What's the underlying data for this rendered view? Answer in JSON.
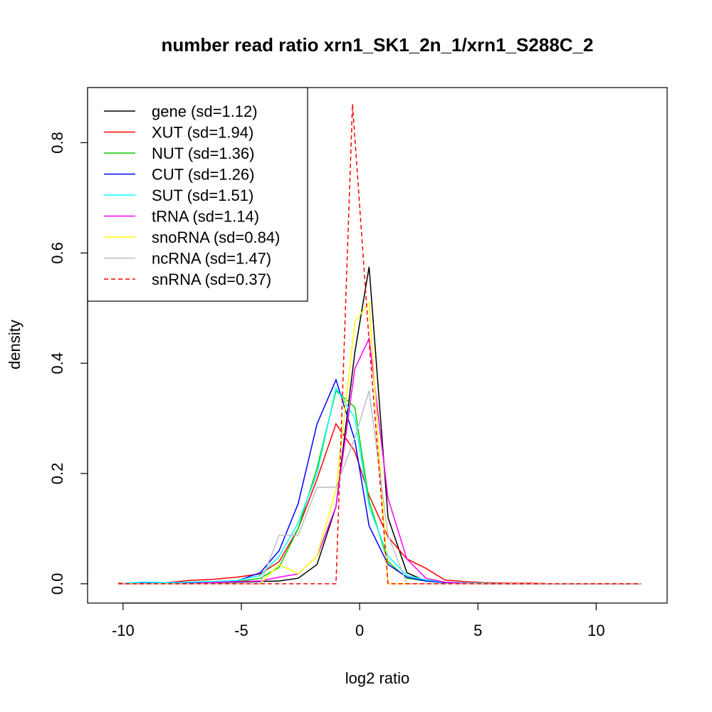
{
  "chart_data": {
    "type": "line",
    "title": "number read ratio xrn1_SK1_2n_1/xrn1_S288C_2",
    "xlabel": "log2 ratio",
    "ylabel": "density",
    "xlim": [
      -11.5,
      13.0
    ],
    "ylim": [
      -0.035,
      0.9
    ],
    "xticks": [
      -10,
      -5,
      0,
      5,
      10
    ],
    "xtick_labels": [
      "-10",
      "-5",
      "0",
      "5",
      "10"
    ],
    "yticks": [
      0.0,
      0.2,
      0.4,
      0.6,
      0.8
    ],
    "ytick_labels": [
      "0.0",
      "0.2",
      "0.4",
      "0.6",
      "0.8"
    ],
    "grid": false,
    "legend_position": "top-left",
    "series": [
      {
        "name": "gene (sd=1.12)",
        "color": "#000000",
        "dash": false,
        "x": [
          -10.2,
          -9.2,
          -8.2,
          -7.2,
          -6.2,
          -5.2,
          -4.2,
          -3.4,
          -2.6,
          -1.8,
          -1.0,
          -0.2,
          0.4,
          1.2,
          2.0,
          2.8,
          3.6,
          4.4,
          5.2,
          6.2,
          7.2,
          8.2,
          9.2,
          10.2,
          11.9
        ],
        "y": [
          0.0,
          0.0,
          0.001,
          0.002,
          0.002,
          0.003,
          0.004,
          0.005,
          0.01,
          0.035,
          0.14,
          0.42,
          0.575,
          0.12,
          0.02,
          0.005,
          0.002,
          0.001,
          0.001,
          0.0,
          0.0,
          0.0,
          0.0,
          0.0,
          0.0
        ]
      },
      {
        "name": "XUT (sd=1.94)",
        "color": "#ff0000",
        "dash": false,
        "x": [
          -10.2,
          -9.2,
          -8.2,
          -7.2,
          -6.2,
          -5.2,
          -4.2,
          -3.4,
          -2.6,
          -1.8,
          -1.0,
          -0.2,
          0.4,
          1.2,
          2.0,
          2.8,
          3.6,
          4.4,
          5.2,
          6.2,
          7.2,
          8.2,
          9.2,
          10.2,
          11.9
        ],
        "y": [
          0.001,
          0.001,
          0.002,
          0.006,
          0.008,
          0.012,
          0.018,
          0.04,
          0.1,
          0.19,
          0.29,
          0.24,
          0.16,
          0.085,
          0.045,
          0.028,
          0.007,
          0.004,
          0.002,
          0.001,
          0.001,
          0.0,
          0.0,
          0.0,
          0.0
        ]
      },
      {
        "name": "NUT (sd=1.36)",
        "color": "#00cd00",
        "dash": false,
        "x": [
          -10.2,
          -9.2,
          -8.2,
          -7.2,
          -6.2,
          -5.2,
          -4.2,
          -3.4,
          -2.6,
          -1.8,
          -1.0,
          -0.2,
          0.4,
          1.2,
          2.0,
          2.8,
          3.6,
          4.4,
          5.2,
          6.2,
          7.2,
          8.2,
          9.2,
          10.2,
          11.9
        ],
        "y": [
          0.0,
          0.002,
          0.001,
          0.002,
          0.003,
          0.004,
          0.01,
          0.03,
          0.1,
          0.21,
          0.35,
          0.32,
          0.15,
          0.04,
          0.01,
          0.005,
          0.002,
          0.001,
          0.0,
          0.0,
          0.0,
          0.0,
          0.0,
          0.0,
          0.0
        ]
      },
      {
        "name": "CUT (sd=1.26)",
        "color": "#0000ff",
        "dash": false,
        "x": [
          -10.2,
          -9.2,
          -8.2,
          -7.2,
          -6.2,
          -5.2,
          -4.2,
          -3.4,
          -2.6,
          -1.8,
          -1.0,
          -0.2,
          0.4,
          1.2,
          2.0,
          2.8,
          3.6,
          4.4,
          5.2,
          6.2,
          7.2,
          8.2,
          9.2,
          10.2,
          11.9
        ],
        "y": [
          0.0,
          0.001,
          0.001,
          0.002,
          0.003,
          0.005,
          0.02,
          0.06,
          0.145,
          0.29,
          0.37,
          0.26,
          0.105,
          0.035,
          0.012,
          0.005,
          0.002,
          0.001,
          0.0,
          0.0,
          0.0,
          0.0,
          0.0,
          0.0,
          0.0
        ]
      },
      {
        "name": "SUT (sd=1.51)",
        "color": "#00ffff",
        "dash": false,
        "x": [
          -10.2,
          -9.2,
          -8.2,
          -7.2,
          -6.2,
          -5.2,
          -4.2,
          -3.4,
          -2.6,
          -1.8,
          -1.0,
          -0.2,
          0.4,
          1.2,
          2.0,
          2.8,
          3.6,
          4.4,
          5.2,
          6.2,
          7.2,
          8.2,
          9.2,
          10.2,
          11.9
        ],
        "y": [
          0.0,
          0.003,
          0.002,
          0.003,
          0.004,
          0.006,
          0.015,
          0.05,
          0.11,
          0.2,
          0.355,
          0.3,
          0.14,
          0.05,
          0.015,
          0.007,
          0.003,
          0.002,
          0.001,
          0.0,
          0.0,
          0.0,
          0.0,
          0.0,
          0.0
        ]
      },
      {
        "name": "tRNA (sd=1.14)",
        "color": "#ff00ff",
        "dash": false,
        "x": [
          -10.2,
          -9.2,
          -8.2,
          -7.2,
          -6.2,
          -5.2,
          -4.2,
          -3.4,
          -2.6,
          -1.8,
          -1.0,
          -0.2,
          0.4,
          1.2,
          2.0,
          2.8,
          3.6,
          4.4,
          5.2,
          6.2,
          7.2,
          8.2,
          9.2,
          10.2,
          11.9
        ],
        "y": [
          0.0,
          0.0,
          0.0,
          0.0,
          0.002,
          0.004,
          0.005,
          0.012,
          0.018,
          0.05,
          0.14,
          0.39,
          0.445,
          0.155,
          0.045,
          0.01,
          0.003,
          0.001,
          0.0,
          0.0,
          0.0,
          0.0,
          0.0,
          0.0,
          0.0
        ]
      },
      {
        "name": "snoRNA (sd=0.84)",
        "color": "#ffff00",
        "dash": false,
        "x": [
          -10.2,
          -9.2,
          -8.2,
          -7.2,
          -6.2,
          -5.2,
          -4.2,
          -3.4,
          -2.6,
          -1.8,
          -1.0,
          -0.2,
          0.4,
          1.2,
          2.0,
          2.8,
          3.6,
          4.4,
          5.2,
          6.2,
          7.2,
          8.2,
          9.2,
          10.2,
          11.9
        ],
        "y": [
          0.0,
          0.0,
          0.0,
          0.0,
          0.0,
          0.0,
          0.0,
          0.035,
          0.018,
          0.05,
          0.17,
          0.475,
          0.51,
          0.0,
          0.0,
          0.0,
          0.0,
          0.0,
          0.0,
          0.0,
          0.0,
          0.0,
          0.0,
          0.0,
          0.0
        ]
      },
      {
        "name": "ncRNA (sd=1.47)",
        "color": "#bebebe",
        "dash": false,
        "x": [
          -10.2,
          -9.2,
          -8.2,
          -7.2,
          -6.2,
          -5.2,
          -4.2,
          -3.4,
          -2.6,
          -1.8,
          -1.0,
          -0.2,
          0.4,
          1.2,
          2.0,
          2.8,
          3.6,
          4.4,
          5.2,
          6.2,
          7.2,
          8.2,
          9.2,
          10.2,
          11.9
        ],
        "y": [
          0.0,
          0.0,
          0.0,
          0.0,
          0.0,
          0.0,
          0.0,
          0.088,
          0.088,
          0.175,
          0.175,
          0.265,
          0.35,
          0.088,
          0.0,
          0.0,
          0.0,
          0.0,
          0.0,
          0.0,
          0.0,
          0.0,
          0.0,
          0.0,
          0.0
        ]
      },
      {
        "name": "snRNA (sd=0.37)",
        "color": "#ff0000",
        "dash": true,
        "x": [
          -10.2,
          -9.2,
          -8.2,
          -7.2,
          -6.2,
          -5.2,
          -4.2,
          -3.4,
          -2.6,
          -1.8,
          -1.0,
          -0.3,
          0.4,
          1.2,
          2.0,
          2.8,
          3.6,
          4.4,
          5.2,
          6.2,
          7.2,
          8.2,
          9.2,
          10.2,
          11.9
        ],
        "y": [
          0.0,
          0.0,
          0.0,
          0.0,
          0.0,
          0.0,
          0.0,
          0.0,
          0.0,
          0.0,
          0.0,
          0.87,
          0.44,
          0.0,
          0.0,
          0.0,
          0.0,
          0.0,
          0.0,
          0.0,
          0.0,
          0.0,
          0.0,
          0.0,
          0.0
        ]
      }
    ]
  }
}
